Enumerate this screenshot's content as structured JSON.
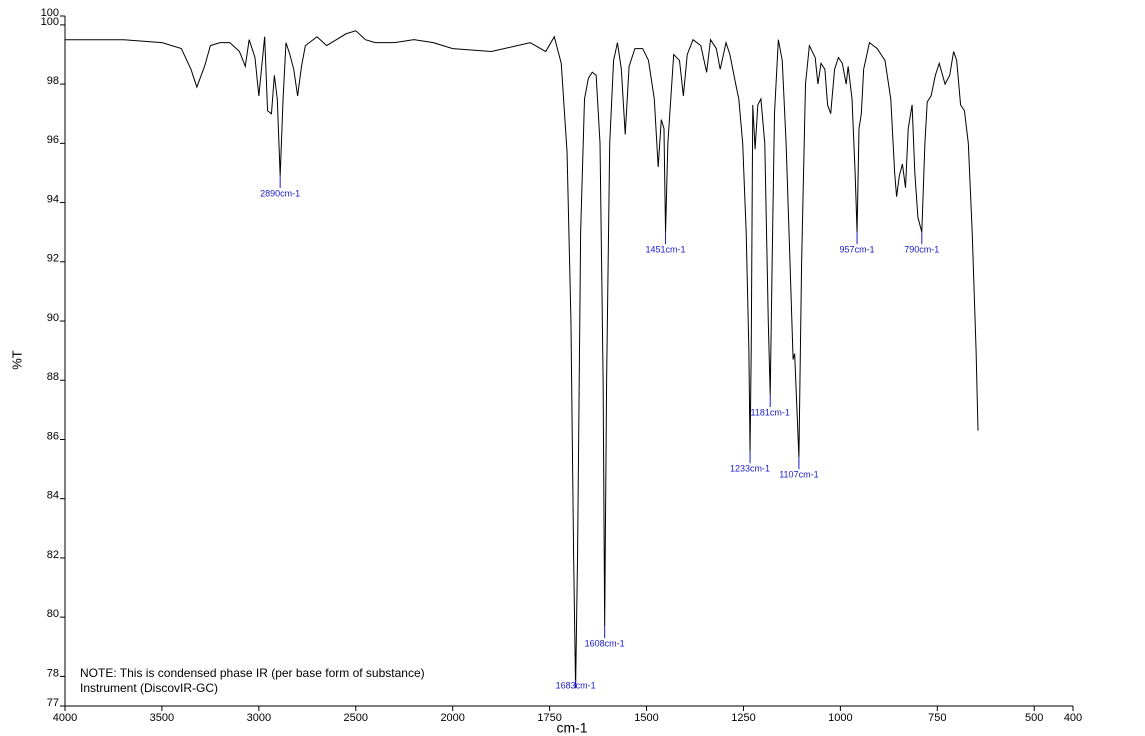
{
  "chart_data": {
    "type": "line",
    "xlabel": "cm-1",
    "ylabel": "%T",
    "reverse_x": true,
    "xbreak": 2000,
    "xlim": [
      4000,
      400
    ],
    "xticks": [
      4000,
      3500,
      3000,
      2500,
      2000,
      1750,
      1500,
      1250,
      1000,
      750,
      500,
      400
    ],
    "ylim": [
      77,
      100.3
    ],
    "yticks": [
      77,
      78,
      80,
      82,
      84,
      86,
      88,
      90,
      92,
      94,
      96,
      98,
      100,
      {
        "value": 100.3,
        "label": "100"
      }
    ],
    "color": "#000000",
    "x": [
      4000,
      3700,
      3500,
      3400,
      3350,
      3320,
      3280,
      3250,
      3200,
      3150,
      3100,
      3070,
      3050,
      3020,
      3000,
      2985,
      2970,
      2955,
      2935,
      2920,
      2905,
      2890,
      2875,
      2860,
      2840,
      2820,
      2800,
      2780,
      2760,
      2700,
      2650,
      2600,
      2550,
      2500,
      2450,
      2400,
      2300,
      2200,
      2100,
      2050,
      2000,
      1900,
      1800,
      1760,
      1738,
      1720,
      1705,
      1695,
      1688,
      1683,
      1678,
      1670,
      1660,
      1650,
      1640,
      1630,
      1620,
      1612,
      1608,
      1603,
      1595,
      1585,
      1575,
      1565,
      1555,
      1545,
      1530,
      1510,
      1495,
      1480,
      1470,
      1462,
      1455,
      1451,
      1445,
      1430,
      1415,
      1405,
      1395,
      1380,
      1360,
      1345,
      1335,
      1320,
      1310,
      1295,
      1285,
      1270,
      1262,
      1252,
      1243,
      1236,
      1233,
      1230,
      1226,
      1220,
      1213,
      1205,
      1195,
      1186,
      1181,
      1176,
      1170,
      1160,
      1150,
      1140,
      1130,
      1122,
      1118,
      1112,
      1107,
      1100,
      1090,
      1080,
      1065,
      1058,
      1050,
      1040,
      1033,
      1025,
      1015,
      1005,
      995,
      985,
      980,
      970,
      962,
      957,
      952,
      946,
      940,
      925,
      905,
      885,
      870,
      860,
      855,
      848,
      840,
      832,
      825,
      815,
      808,
      800,
      790,
      782,
      776,
      766,
      755,
      745,
      730,
      718,
      708,
      700,
      690,
      680,
      670,
      660,
      650,
      645
    ],
    "values": [
      99.5,
      99.5,
      99.4,
      99.2,
      98.5,
      97.9,
      98.6,
      99.3,
      99.4,
      99.4,
      99.1,
      98.6,
      99.5,
      98.9,
      97.6,
      98.6,
      99.6,
      97.1,
      97.0,
      98.3,
      97.5,
      94.9,
      97.5,
      99.4,
      99.0,
      98.5,
      97.6,
      98.6,
      99.3,
      99.6,
      99.3,
      99.5,
      99.7,
      99.8,
      99.5,
      99.4,
      99.4,
      99.5,
      99.4,
      99.3,
      99.2,
      99.1,
      99.4,
      99.1,
      99.6,
      98.7,
      95.7,
      90,
      82,
      77.6,
      82,
      93,
      97.5,
      98.2,
      98.4,
      98.3,
      96,
      88,
      79.7,
      88,
      96,
      98.8,
      99.4,
      98.5,
      96.3,
      98.6,
      99.2,
      99.2,
      98.8,
      97.5,
      95.2,
      96.8,
      96.5,
      93.0,
      96,
      99.0,
      98.8,
      97.6,
      99.0,
      99.5,
      99.3,
      98.4,
      99.5,
      99.2,
      98.5,
      99.4,
      99.0,
      98.0,
      97.5,
      96,
      93,
      89,
      85.6,
      89,
      97.3,
      95.8,
      97.3,
      97.5,
      96,
      90,
      87.5,
      92,
      97,
      99.5,
      98.8,
      96,
      92,
      88.7,
      88.9,
      87,
      85.4,
      92,
      98,
      99.3,
      98.9,
      98.0,
      98.7,
      98.5,
      97.3,
      97.0,
      98.5,
      98.9,
      98.7,
      98.0,
      98.6,
      97.5,
      95,
      93.0,
      96.5,
      97.0,
      98.5,
      99.4,
      99.2,
      98.8,
      97.5,
      95,
      94.2,
      94.9,
      95.3,
      94.5,
      96.5,
      97.3,
      95,
      93.5,
      93.0,
      96,
      97.4,
      97.6,
      98.3,
      98.7,
      98.0,
      98.3,
      99.1,
      98.8,
      97.3,
      97.1,
      96,
      93,
      89,
      86.3
    ],
    "annotations": [
      {
        "text": "2890cm-1",
        "x": 2890,
        "y": 94.9
      },
      {
        "text": "1683cm-1",
        "x": 1683,
        "y": 77.6
      },
      {
        "text": "1608cm-1",
        "x": 1608,
        "y": 79.7
      },
      {
        "text": "1451cm-1",
        "x": 1451,
        "y": 93.0
      },
      {
        "text": "1233cm-1",
        "x": 1233,
        "y": 85.6
      },
      {
        "text": "1181cm-1",
        "x": 1181,
        "y": 87.5
      },
      {
        "text": "1107cm-1",
        "x": 1107,
        "y": 85.4
      },
      {
        "text": "957cm-1",
        "x": 957,
        "y": 93.0
      },
      {
        "text": "790cm-1",
        "x": 790,
        "y": 93.0
      }
    ],
    "notes": [
      "NOTE: This is condensed phase IR (per base form of substance)",
      "Instrument (DiscovIR-GC)"
    ]
  }
}
